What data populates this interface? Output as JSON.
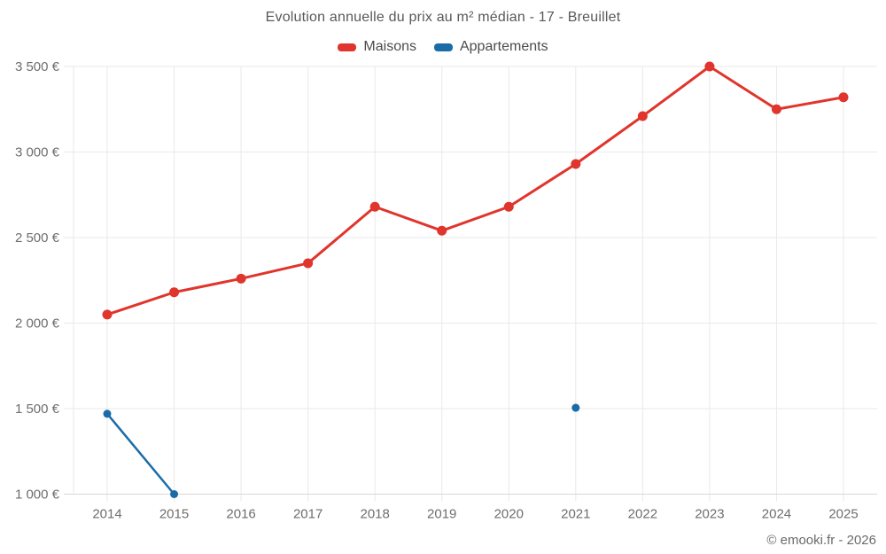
{
  "footer": {
    "copyright": "© emooki.fr - 2026"
  },
  "chart_data": {
    "type": "line",
    "title": "Evolution annuelle du prix au m² médian - 17 - Breuillet",
    "xlabel": "",
    "ylabel": "",
    "legend_position": "top",
    "grid": "horizontal+vertical",
    "grid_color": "#e9e9e9",
    "axis_line_color": "#d8d8d8",
    "axis_text_color": "#6e6e6e",
    "categories": [
      "2014",
      "2015",
      "2016",
      "2017",
      "2018",
      "2019",
      "2020",
      "2021",
      "2022",
      "2023",
      "2024",
      "2025"
    ],
    "ylim": [
      1000,
      3500
    ],
    "ytick_step": 500,
    "yticks": [
      {
        "value": 1000,
        "label": "1 000 €"
      },
      {
        "value": 1500,
        "label": "1 500 €"
      },
      {
        "value": 2000,
        "label": "2 000 €"
      },
      {
        "value": 2500,
        "label": "2 500 €"
      },
      {
        "value": 3000,
        "label": "3 000 €"
      },
      {
        "value": 3500,
        "label": "3 500 €"
      }
    ],
    "series": [
      {
        "name": "Maisons",
        "color": "#e0352c",
        "line_width": 3,
        "point_radius": 5.5,
        "values": [
          2050,
          2180,
          2260,
          2350,
          2680,
          2540,
          2680,
          2930,
          3210,
          3500,
          3250,
          3320
        ]
      },
      {
        "name": "Appartements",
        "color": "#1a6ca8",
        "line_width": 2.5,
        "point_radius": 4.5,
        "values": [
          1470,
          1000,
          null,
          null,
          null,
          null,
          null,
          1505,
          null,
          null,
          null,
          null
        ]
      }
    ]
  }
}
